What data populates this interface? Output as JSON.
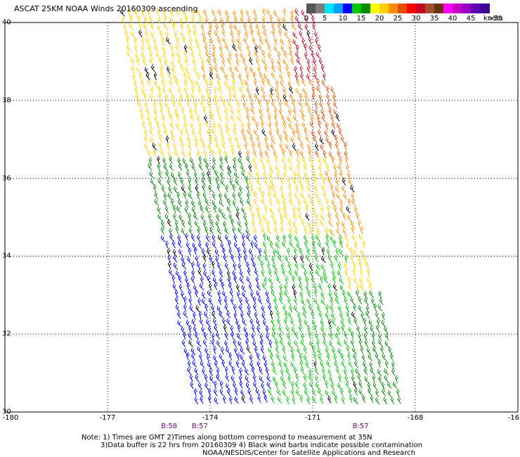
{
  "title": "ASCAT 25KM NOAA Winds 20160309 ascending",
  "legend": {
    "ticks": [
      "0",
      "5",
      "10",
      "15",
      "20",
      "25",
      "30",
      "35",
      "40",
      "45",
      ">50"
    ],
    "units": "knots",
    "colors": [
      "#555555",
      "#7f7f7f",
      "#00e5ff",
      "#00a2ff",
      "#0000ff",
      "#00c800",
      "#008c00",
      "#ffff00",
      "#ffd000",
      "#ff8c00",
      "#e65000",
      "#ff0000",
      "#c80028",
      "#a05028",
      "#6e3210",
      "#ff00ff",
      "#c800c8",
      "#9600c8",
      "#6400b4",
      "#3c0096"
    ]
  },
  "axes": {
    "lat_ticks": [
      "40",
      "38",
      "36",
      "34",
      "32",
      "30"
    ],
    "lon_ticks": [
      "-180",
      "-177",
      "-174",
      "-171",
      "-168",
      "-16"
    ],
    "lon_range": [
      -180,
      -165
    ],
    "lat_range": [
      30,
      40
    ],
    "grid": true
  },
  "times": [
    {
      "label": "B:58",
      "lon": -175.2
    },
    {
      "label": "B:57",
      "lon": -174.3
    },
    {
      "label": "B:57",
      "lon": -169.6
    }
  ],
  "notes": [
    "Note: 1) Times are GMT 2)Times along bottom correspond to measurement at 35N",
    "3)Data buffer is 22 hrs from 20160309 4) Black wind barbs indicate possible contamination",
    "NOAA/NESDIS/Center for Satellite Applications and Research"
  ],
  "swath": {
    "corners_lonlat": [
      [
        -176.6,
        40.2
      ],
      [
        -170.8,
        40.2
      ],
      [
        -168.2,
        30.0
      ],
      [
        -174.4,
        30.0
      ]
    ],
    "wind_zones": [
      {
        "lat_min": 38.5,
        "lat_max": 40.2,
        "lon_split": [
          -174.2,
          -171.5
        ],
        "colors": [
          "#ffd000",
          "#ff8c00",
          "#c80028"
        ]
      },
      {
        "lat_min": 36.5,
        "lat_max": 38.5,
        "lon_split": [
          -173.0,
          -171.0
        ],
        "colors": [
          "#ffd000",
          "#ff8c00",
          "#e65000"
        ]
      },
      {
        "lat_min": 34.5,
        "lat_max": 36.5,
        "lon_split": [
          -172.8,
          -170.5
        ],
        "colors": [
          "#008c00",
          "#ffd000",
          "#ff8c00"
        ]
      },
      {
        "lat_min": 33.0,
        "lat_max": 34.5,
        "lon_split": [
          -172.5,
          -170.0
        ],
        "colors": [
          "#0000ff",
          "#00c800",
          "#ffd000"
        ]
      },
      {
        "lat_min": 30.0,
        "lat_max": 33.0,
        "lon_split": [
          -172.2,
          -169.8
        ],
        "colors": [
          "#0000ff",
          "#00c800",
          "#008c00"
        ]
      }
    ]
  }
}
